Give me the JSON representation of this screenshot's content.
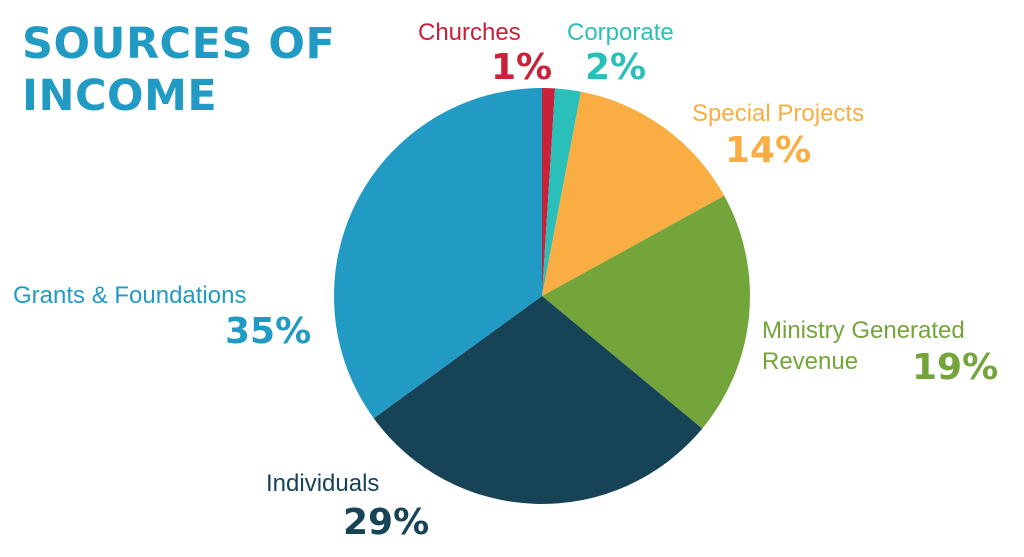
{
  "title_line1": "SOURCES OF",
  "title_line2": "INCOME",
  "chart_data": {
    "type": "pie",
    "title": "SOURCES OF INCOME",
    "slices": [
      {
        "label": "Churches",
        "value": 1,
        "display": "1%",
        "color": "#c8213a"
      },
      {
        "label": "Corporate",
        "value": 2,
        "display": "2%",
        "color": "#2abfb9"
      },
      {
        "label": "Special Projects",
        "value": 14,
        "display": "14%",
        "color": "#f9ad43"
      },
      {
        "label_line1": "Ministry Generated",
        "label_line2": "Revenue",
        "label": "Ministry Generated Revenue",
        "value": 19,
        "display": "19%",
        "color": "#74a53b"
      },
      {
        "label": "Individuals",
        "value": 29,
        "display": "29%",
        "color": "#174357"
      },
      {
        "label": "Grants & Foundations",
        "value": 35,
        "display": "35%",
        "color": "#219bc4"
      }
    ]
  }
}
